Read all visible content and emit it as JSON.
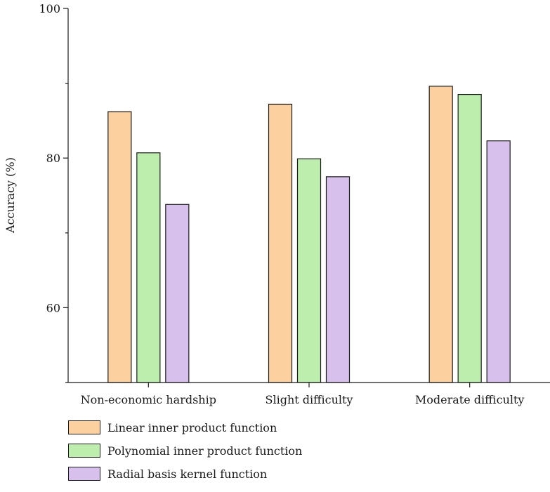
{
  "chart_data": {
    "type": "bar",
    "title": "",
    "xlabel": "",
    "ylabel": "Accuracy (%)",
    "ylim": [
      50,
      100
    ],
    "yticks": [
      60,
      80,
      100
    ],
    "grid": false,
    "legend_position": "bottom-left",
    "categories": [
      "Non-economic hardship",
      "Slight difficulty",
      "Moderate difficulty"
    ],
    "series": [
      {
        "name": "Linear inner product function",
        "color": "#fdd09f",
        "values": [
          86.2,
          87.2,
          89.6
        ]
      },
      {
        "name": "Polynomial inner product function",
        "color": "#bdeeae",
        "values": [
          80.7,
          79.9,
          88.5
        ]
      },
      {
        "name": "Radial basis kernel function",
        "color": "#d7c1ec",
        "values": [
          73.8,
          77.5,
          82.3
        ]
      }
    ]
  }
}
